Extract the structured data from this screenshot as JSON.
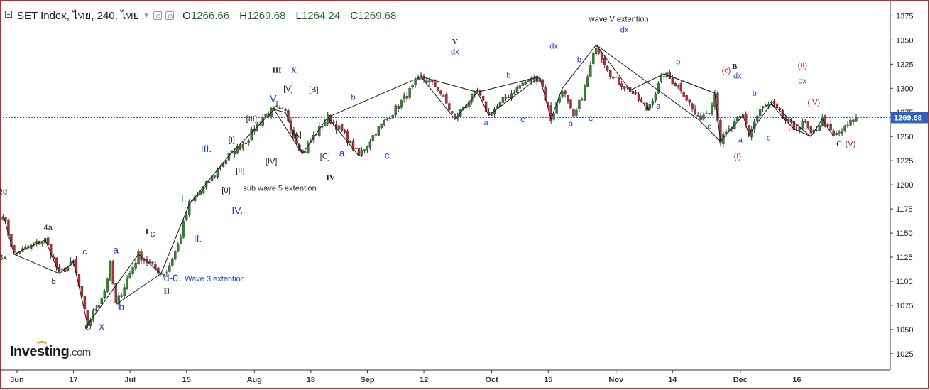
{
  "header": {
    "symbol": "SET Index, ไทย, 240, ไทย",
    "o_label": "O",
    "o_value": "1266.66",
    "h_label": "H",
    "h_value": "1269.68",
    "l_label": "L",
    "l_value": "1264.24",
    "c_label": "C",
    "c_value": "1269.68"
  },
  "logo": {
    "main": "Investing",
    "suffix": ".com"
  },
  "chart_data": {
    "type": "candlestick",
    "price_axis": {
      "ticks": [
        1025,
        1050,
        1075,
        1100,
        1125,
        1150,
        1175,
        1200,
        1225,
        1250,
        1275,
        1300,
        1325,
        1350,
        1375
      ],
      "range": [
        1008,
        1390
      ],
      "position": "right"
    },
    "time_axis": {
      "labels": [
        "Jun",
        "17",
        "Jul",
        "15",
        "Aug",
        "18",
        "Sep",
        "12",
        "Oct",
        "15",
        "Nov",
        "14",
        "Dec",
        "16"
      ],
      "label_index": [
        2,
        22,
        42,
        62,
        86,
        106,
        126,
        146,
        170,
        190,
        214,
        234,
        258,
        278
      ]
    },
    "last_price": {
      "value": 1269.68,
      "label": "1269.68"
    },
    "pivots": [
      [
        0,
        1170
      ],
      [
        4,
        1128
      ],
      [
        15,
        1143
      ],
      [
        20,
        1108
      ],
      [
        25,
        1120
      ],
      [
        30,
        1055
      ],
      [
        36,
        1090
      ],
      [
        38,
        1118
      ],
      [
        40,
        1076
      ],
      [
        48,
        1128
      ],
      [
        56,
        1108
      ],
      [
        58,
        1110
      ],
      [
        62,
        1138
      ],
      [
        66,
        1180
      ],
      [
        72,
        1200
      ],
      [
        76,
        1215
      ],
      [
        80,
        1230
      ],
      [
        86,
        1245
      ],
      [
        92,
        1270
      ],
      [
        96,
        1278
      ],
      [
        100,
        1275
      ],
      [
        106,
        1232
      ],
      [
        110,
        1250
      ],
      [
        115,
        1270
      ],
      [
        120,
        1255
      ],
      [
        126,
        1230
      ],
      [
        132,
        1255
      ],
      [
        140,
        1282
      ],
      [
        148,
        1312
      ],
      [
        154,
        1300
      ],
      [
        160,
        1268
      ],
      [
        164,
        1285
      ],
      [
        168,
        1296
      ],
      [
        172,
        1272
      ],
      [
        178,
        1290
      ],
      [
        184,
        1305
      ],
      [
        190,
        1312
      ],
      [
        194,
        1268
      ],
      [
        198,
        1300
      ],
      [
        202,
        1268
      ],
      [
        206,
        1300
      ],
      [
        210,
        1345
      ],
      [
        216,
        1310
      ],
      [
        222,
        1298
      ],
      [
        228,
        1278
      ],
      [
        234,
        1315
      ],
      [
        240,
        1300
      ],
      [
        246,
        1268
      ],
      [
        250,
        1278
      ],
      [
        252,
        1295
      ],
      [
        254,
        1245
      ],
      [
        258,
        1260
      ],
      [
        262,
        1272
      ],
      [
        264,
        1252
      ],
      [
        268,
        1278
      ],
      [
        272,
        1284
      ],
      [
        276,
        1270
      ],
      [
        280,
        1258
      ],
      [
        284,
        1264
      ],
      [
        286,
        1250
      ],
      [
        290,
        1268
      ],
      [
        294,
        1250
      ],
      [
        298,
        1258
      ],
      [
        302,
        1270
      ]
    ],
    "wave_lines": [
      [
        [
          0,
          1170
        ],
        [
          4,
          1128
        ],
        [
          15,
          1143
        ],
        [
          20,
          1108
        ],
        [
          25,
          1120
        ],
        [
          30,
          1055
        ],
        [
          48,
          1128
        ],
        [
          56,
          1108
        ]
      ],
      [
        [
          4,
          1128
        ],
        [
          20,
          1108
        ]
      ],
      [
        [
          40,
          1076
        ],
        [
          56,
          1108
        ]
      ],
      [
        [
          56,
          1108
        ],
        [
          66,
          1180
        ],
        [
          80,
          1230
        ],
        [
          96,
          1278
        ]
      ],
      [
        [
          96,
          1278
        ],
        [
          100,
          1275
        ],
        [
          106,
          1232
        ],
        [
          115,
          1270
        ],
        [
          126,
          1230
        ],
        [
          115,
          1270
        ]
      ],
      [
        [
          96,
          1278
        ],
        [
          106,
          1232
        ]
      ],
      [
        [
          115,
          1270
        ],
        [
          148,
          1312
        ],
        [
          160,
          1268
        ],
        [
          168,
          1296
        ],
        [
          172,
          1272
        ],
        [
          190,
          1312
        ],
        [
          194,
          1268
        ],
        [
          198,
          1300
        ],
        [
          210,
          1345
        ],
        [
          222,
          1298
        ],
        [
          234,
          1315
        ],
        [
          252,
          1295
        ],
        [
          254,
          1245
        ],
        [
          262,
          1272
        ],
        [
          264,
          1252
        ],
        [
          272,
          1284
        ],
        [
          276,
          1270
        ],
        [
          280,
          1258
        ],
        [
          286,
          1250
        ],
        [
          290,
          1268
        ],
        [
          294,
          1250
        ]
      ],
      [
        [
          148,
          1312
        ],
        [
          168,
          1296
        ]
      ],
      [
        [
          168,
          1296
        ],
        [
          190,
          1312
        ]
      ],
      [
        [
          210,
          1345
        ],
        [
          246,
          1268
        ],
        [
          254,
          1245
        ]
      ],
      [
        [
          234,
          1315
        ],
        [
          252,
          1295
        ]
      ],
      [
        [
          272,
          1284
        ],
        [
          286,
          1250
        ]
      ]
    ],
    "annotations": [
      {
        "t": "2d",
        "i": 0,
        "p": 1190,
        "c": "#1a1a1a"
      },
      {
        "t": "3x",
        "i": 0,
        "p": 1122,
        "c": "#1a1a1a"
      },
      {
        "t": "4a",
        "i": 16,
        "p": 1153,
        "c": "#1a1a1a"
      },
      {
        "t": "b",
        "i": 18,
        "p": 1097,
        "c": "#1a1a1a"
      },
      {
        "t": "c",
        "i": 29,
        "p": 1128,
        "c": "#1a1a1a"
      },
      {
        "t": "C",
        "i": 30,
        "p": 1050,
        "c": "#1a1a1a",
        "b": true
      },
      {
        "t": "x",
        "i": 35,
        "p": 1050,
        "c": "#1f3fd1",
        "s": 14
      },
      {
        "t": "a",
        "i": 40,
        "p": 1129,
        "c": "#1f3fd1",
        "s": 14
      },
      {
        "t": "b",
        "i": 42,
        "p": 1070,
        "c": "#1f3fd1",
        "s": 14
      },
      {
        "t": "I",
        "i": 51,
        "p": 1149,
        "c": "#1a1a1a",
        "b": true
      },
      {
        "t": "c",
        "i": 53,
        "p": 1146,
        "c": "#1f3fd1",
        "s": 14
      },
      {
        "t": "II",
        "i": 58,
        "p": 1087,
        "c": "#1a1a1a",
        "b": true
      },
      {
        "t": "d-0.",
        "i": 60,
        "p": 1100,
        "c": "#1f3fd1",
        "s": 14
      },
      {
        "t": "Wave 3 extention",
        "i": 75,
        "p": 1100,
        "c": "#1f3fd1"
      },
      {
        "t": "I.",
        "i": 64,
        "p": 1182,
        "c": "#1f3fd1",
        "s": 14
      },
      {
        "t": "II.",
        "i": 69,
        "p": 1141,
        "c": "#1f3fd1",
        "s": 14
      },
      {
        "t": "III.",
        "i": 72,
        "p": 1234,
        "c": "#1f3fd1",
        "s": 14
      },
      {
        "t": "IV.",
        "i": 83,
        "p": 1170,
        "c": "#1f3fd1",
        "s": 14
      },
      {
        "t": "[0]",
        "i": 79,
        "p": 1192,
        "c": "#1a1a1a"
      },
      {
        "t": "sub wave 5 extention",
        "i": 98,
        "p": 1194,
        "c": "#333333"
      },
      {
        "t": "[I]",
        "i": 81,
        "p": 1244,
        "c": "#1a1a1a"
      },
      {
        "t": "[II]",
        "i": 84,
        "p": 1212,
        "c": "#1a1a1a"
      },
      {
        "t": "[III]",
        "i": 88,
        "p": 1266,
        "c": "#1a1a1a"
      },
      {
        "t": "[IV]",
        "i": 95,
        "p": 1222,
        "c": "#1a1a1a"
      },
      {
        "t": "V.",
        "i": 96,
        "p": 1286,
        "c": "#1f3fd1",
        "s": 14
      },
      {
        "t": "[V]",
        "i": 101,
        "p": 1297,
        "c": "#1a1a1a"
      },
      {
        "t": "III",
        "i": 97,
        "p": 1316,
        "c": "#1a1a1a",
        "b": true
      },
      {
        "t": "X",
        "i": 103,
        "p": 1316,
        "c": "#1f3fd1",
        "b": true
      },
      {
        "t": "[A]",
        "i": 104,
        "p": 1249,
        "c": "#1a1a1a"
      },
      {
        "t": "[B]",
        "i": 110,
        "p": 1296,
        "c": "#1a1a1a"
      },
      {
        "t": "[C]",
        "i": 114,
        "p": 1227,
        "c": "#1a1a1a"
      },
      {
        "t": "a",
        "i": 120,
        "p": 1229,
        "c": "#1f3fd1",
        "s": 14
      },
      {
        "t": "IV",
        "i": 116,
        "p": 1205,
        "c": "#1a1a1a",
        "b": true
      },
      {
        "t": "b",
        "i": 124,
        "p": 1288,
        "c": "#1f3fd1"
      },
      {
        "t": "c",
        "i": 136,
        "p": 1227,
        "c": "#1f3fd1",
        "s": 14
      },
      {
        "t": "V",
        "i": 160,
        "p": 1346,
        "c": "#1a1a1a",
        "b": true
      },
      {
        "t": "dx",
        "i": 160,
        "p": 1335,
        "c": "#1f3fd1"
      },
      {
        "t": "a",
        "i": 171,
        "p": 1262,
        "c": "#1f3fd1"
      },
      {
        "t": "b",
        "i": 179,
        "p": 1311,
        "c": "#1f3fd1"
      },
      {
        "t": "c",
        "i": 184,
        "p": 1265,
        "c": "#1f3fd1",
        "s": 13
      },
      {
        "t": "dx",
        "i": 195,
        "p": 1341,
        "c": "#1f3fd1"
      },
      {
        "t": "b",
        "i": 204,
        "p": 1327,
        "c": "#1f3fd1"
      },
      {
        "t": "a",
        "i": 201,
        "p": 1261,
        "c": "#1f3fd1"
      },
      {
        "t": "c",
        "i": 208,
        "p": 1266,
        "c": "#1f3fd1",
        "s": 13
      },
      {
        "t": "wave V extention",
        "i": 218,
        "p": 1369,
        "c": "#1a1a1a"
      },
      {
        "t": "dx",
        "i": 220,
        "p": 1358,
        "c": "#1f3fd1"
      },
      {
        "t": "A",
        "i": 228,
        "p": 1277,
        "c": "#1a1a1a",
        "b": true
      },
      {
        "t": "a",
        "i": 232,
        "p": 1279,
        "c": "#1f3fd1"
      },
      {
        "t": "b",
        "i": 239,
        "p": 1325,
        "c": "#1f3fd1"
      },
      {
        "t": "(c)",
        "i": 256,
        "p": 1316,
        "c": "#d11a1a"
      },
      {
        "t": "B",
        "i": 259,
        "p": 1320,
        "c": "#1a1a1a",
        "b": true
      },
      {
        "t": "dx",
        "i": 260,
        "p": 1310,
        "c": "#1f3fd1"
      },
      {
        "t": "c",
        "i": 250,
        "p": 1258,
        "c": "#1f3fd1"
      },
      {
        "t": "a",
        "i": 261,
        "p": 1244,
        "c": "#1f3fd1"
      },
      {
        "t": "(I)",
        "i": 260,
        "p": 1227,
        "c": "#d11a1a"
      },
      {
        "t": "b",
        "i": 266,
        "p": 1292,
        "c": "#1f3fd1"
      },
      {
        "t": "c",
        "i": 271,
        "p": 1246,
        "c": "#1f3fd1"
      },
      {
        "t": "(II)",
        "i": 283,
        "p": 1321,
        "c": "#d11a1a"
      },
      {
        "t": "dx",
        "i": 283,
        "p": 1305,
        "c": "#1f3fd1"
      },
      {
        "t": "(IV)",
        "i": 287,
        "p": 1283,
        "c": "#d11a1a"
      },
      {
        "t": "(III)",
        "i": 280,
        "p": 1257,
        "c": "#d11a1a"
      },
      {
        "t": "C",
        "i": 296,
        "p": 1240,
        "c": "#1a1a1a",
        "b": true
      },
      {
        "t": "(V)",
        "i": 300,
        "p": 1240,
        "c": "#d11a1a"
      }
    ]
  }
}
